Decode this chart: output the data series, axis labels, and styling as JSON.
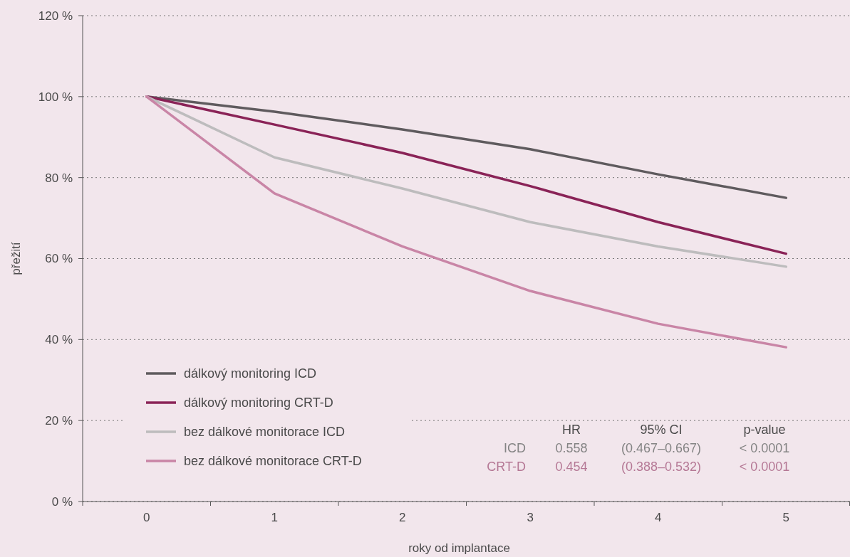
{
  "chart_data": {
    "type": "line",
    "xlabel": "roky od implantace",
    "ylabel": "přežití",
    "categories": [
      "0",
      "1",
      "2",
      "3",
      "4",
      "5"
    ],
    "series": [
      {
        "name": "dálkový monitoring ICD",
        "color": "#5f5b5e",
        "values": [
          100,
          96.3,
          91.9,
          87,
          80.8,
          75
        ]
      },
      {
        "name": "dálkový monitoring CRT-D",
        "color": "#8a2357",
        "values": [
          100,
          93.1,
          86.1,
          77.9,
          69,
          61.2
        ]
      },
      {
        "name": "bez dálkové monitorace ICD",
        "color": "#bdbcbd",
        "values": [
          100,
          85,
          77.3,
          69,
          63,
          58
        ]
      },
      {
        "name": "bez dálkové monitorace CRT-D",
        "color": "#c985a6",
        "values": [
          100,
          76.1,
          63,
          52,
          43.9,
          38.1
        ]
      }
    ],
    "ylim": [
      0,
      120
    ],
    "yticks": [
      {
        "value": 0,
        "label": "0 %"
      },
      {
        "value": 20,
        "label": "20 %"
      },
      {
        "value": 40,
        "label": "40 %"
      },
      {
        "value": 60,
        "label": "60 %"
      },
      {
        "value": 80,
        "label": "80 %"
      },
      {
        "value": 100,
        "label": "100 %"
      },
      {
        "value": 120,
        "label": "120 %"
      }
    ],
    "grid": "y",
    "legend": "bottom left",
    "marker": "none",
    "line_style": "solid",
    "annotations": [
      "HR",
      "95% CI",
      "p-value",
      "ICD",
      "0.558",
      "(0.467–0.667)",
      "< 0.0001",
      "CRT-D",
      "0.454",
      "(0.388–0.532)",
      "< 0.0001"
    ]
  }
}
